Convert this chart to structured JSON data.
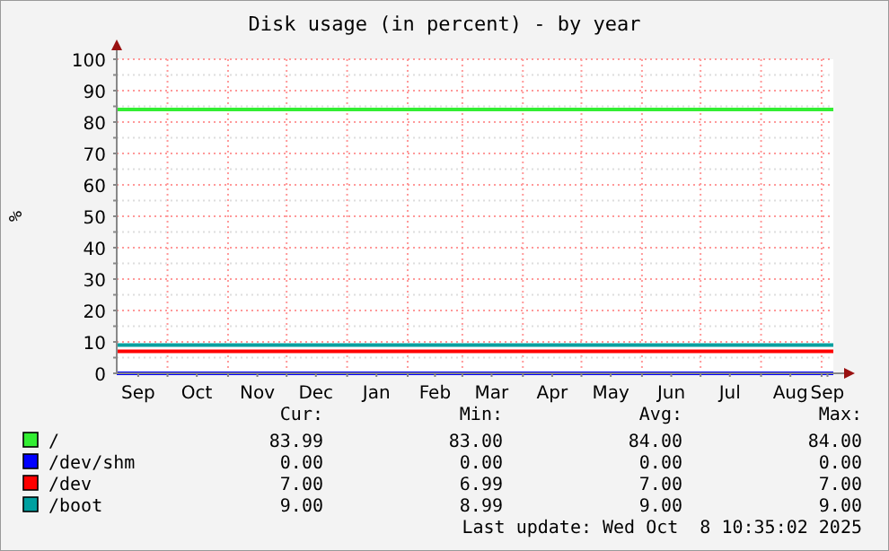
{
  "chart_data": {
    "type": "line",
    "title": "Disk usage (in percent) - by year",
    "ylabel": "%",
    "x": [
      "2024-09-05",
      "2025-09-07"
    ],
    "series": [
      {
        "name": "/",
        "color": "#33ee33",
        "values": [
          84,
          84
        ]
      },
      {
        "name": "/dev/shm",
        "color": "#0000ff",
        "values": [
          0,
          0
        ]
      },
      {
        "name": "/dev",
        "color": "#ff0000",
        "values": [
          7,
          7
        ]
      },
      {
        "name": "/boot",
        "color": "#00a0a0",
        "values": [
          9,
          9
        ]
      }
    ],
    "xlim": [
      "2024-09-05",
      "2025-09-07"
    ],
    "xticks": [
      {
        "value": "2024-09-16",
        "label": "Sep"
      },
      {
        "value": "2024-10-01",
        "label": null
      },
      {
        "value": "2024-10-16",
        "label": "Oct"
      },
      {
        "value": "2024-11-01",
        "label": null
      },
      {
        "value": "2024-11-16",
        "label": "Nov"
      },
      {
        "value": "2024-12-01",
        "label": null
      },
      {
        "value": "2024-12-16",
        "label": "Dec"
      },
      {
        "value": "2025-01-01",
        "label": null
      },
      {
        "value": "2025-01-16",
        "label": "Jan"
      },
      {
        "value": "2025-02-01",
        "label": null
      },
      {
        "value": "2025-02-15",
        "label": "Feb"
      },
      {
        "value": "2025-03-01",
        "label": null
      },
      {
        "value": "2025-03-16",
        "label": "Mar"
      },
      {
        "value": "2025-04-01",
        "label": null
      },
      {
        "value": "2025-04-16",
        "label": "Apr"
      },
      {
        "value": "2025-05-01",
        "label": null
      },
      {
        "value": "2025-05-16",
        "label": "May"
      },
      {
        "value": "2025-06-01",
        "label": null
      },
      {
        "value": "2025-06-16",
        "label": "Jun"
      },
      {
        "value": "2025-07-01",
        "label": null
      },
      {
        "value": "2025-07-16",
        "label": "Jul"
      },
      {
        "value": "2025-08-01",
        "label": null
      },
      {
        "value": "2025-08-16",
        "label": "Aug"
      },
      {
        "value": "2025-09-01",
        "label": null
      },
      {
        "value": "2025-09-04",
        "label": "Sep"
      }
    ],
    "ylim": [
      0,
      100
    ],
    "yticks": [
      0,
      {
        "value": 5,
        "label": null
      },
      10,
      {
        "value": 15,
        "label": null
      },
      20,
      {
        "value": 25,
        "label": null
      },
      30,
      {
        "value": 35,
        "label": null
      },
      40,
      {
        "value": 45,
        "label": null
      },
      50,
      {
        "value": 55,
        "label": null
      },
      60,
      {
        "value": 65,
        "label": null
      },
      70,
      {
        "value": 75,
        "label": null
      },
      80,
      {
        "value": 85,
        "label": null
      },
      90,
      {
        "value": 95,
        "label": null
      },
      100
    ],
    "grid": true,
    "legend": "bottom",
    "marker": "none",
    "line_style": "solid",
    "annotations": [
      "Cur:",
      "Min:",
      "Avg:",
      "Max:",
      "83.99",
      "83.00",
      "84.00",
      "84.00",
      "0.00",
      "0.00",
      "0.00",
      "0.00",
      "7.00",
      "6.99",
      "7.00",
      "7.00",
      "9.00",
      "8.99",
      "9.00",
      "9.00",
      "Last update: Wed Oct  8 10:35:02 2025"
    ]
  }
}
